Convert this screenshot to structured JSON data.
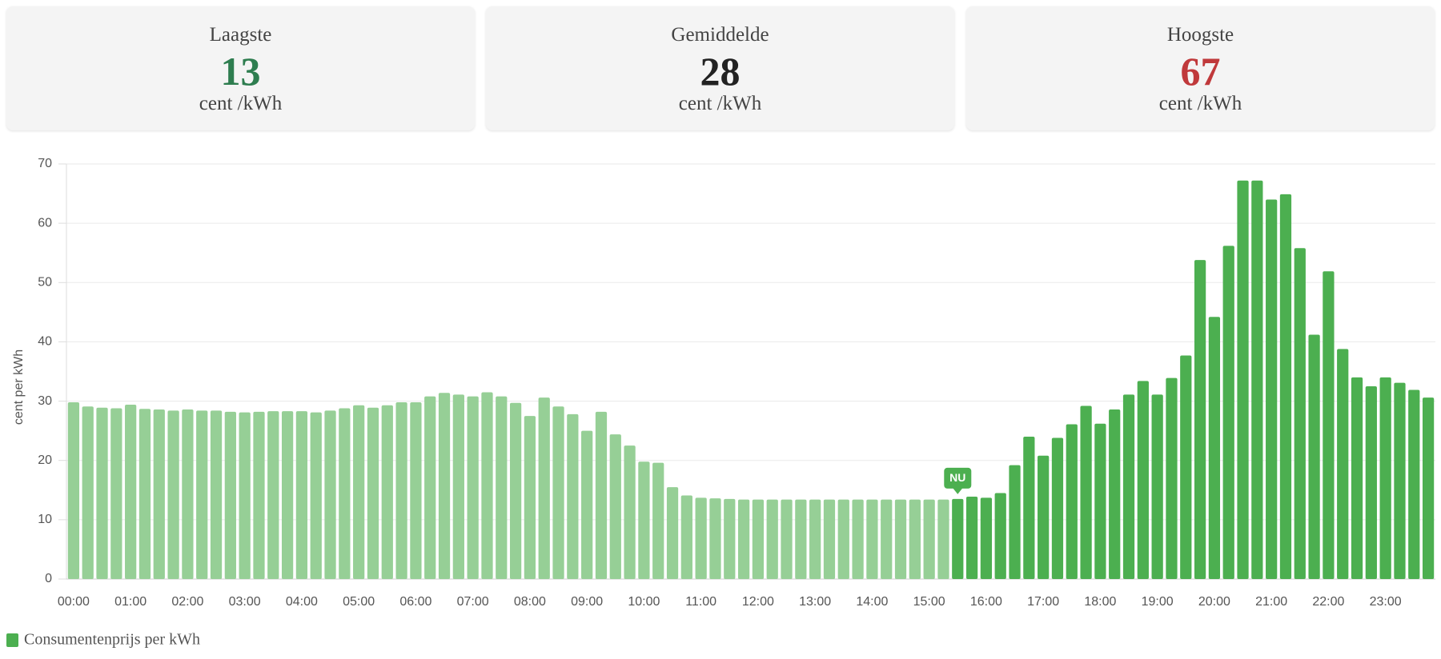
{
  "cards": [
    {
      "label": "Laagste",
      "value": 13,
      "unit": "cent /kWh",
      "color": "#2e7d4f"
    },
    {
      "label": "Gemiddelde",
      "value": 28,
      "unit": "cent /kWh",
      "color": "#222222"
    },
    {
      "label": "Hoogste",
      "value": 67,
      "unit": "cent /kWh",
      "color": "#c0393b"
    }
  ],
  "chart_data": {
    "type": "bar",
    "y_label": "cent per kWh",
    "categories": [
      "00:00",
      null,
      null,
      null,
      "01:00",
      null,
      null,
      null,
      "02:00",
      null,
      null,
      null,
      "03:00",
      null,
      null,
      null,
      "04:00",
      null,
      null,
      null,
      "05:00",
      null,
      null,
      null,
      "06:00",
      null,
      null,
      null,
      "07:00",
      null,
      null,
      null,
      "08:00",
      null,
      null,
      null,
      "09:00",
      null,
      null,
      null,
      "10:00",
      null,
      null,
      null,
      "11:00",
      null,
      null,
      null,
      "12:00",
      null,
      null,
      null,
      "13:00",
      null,
      null,
      null,
      "14:00",
      null,
      null,
      null,
      "15:00",
      null,
      null,
      null,
      "16:00",
      null,
      null,
      null,
      "17:00",
      null,
      null,
      null,
      "18:00",
      null,
      null,
      null,
      "19:00",
      null,
      null,
      null,
      "20:00",
      null,
      null,
      null,
      "21:00",
      null,
      null,
      null,
      "22:00",
      null,
      null,
      null,
      "23:00",
      null,
      null,
      null
    ],
    "series": [
      {
        "name": "Consumentenprijs per kWh",
        "color": "#4caf50",
        "values": [
          29.8,
          29.1,
          28.9,
          28.8,
          29.4,
          28.7,
          28.6,
          28.4,
          28.6,
          28.4,
          28.4,
          28.2,
          28.1,
          28.2,
          28.3,
          28.3,
          28.3,
          28.1,
          28.4,
          28.8,
          29.3,
          28.9,
          29.3,
          29.8,
          29.8,
          30.8,
          31.4,
          31.1,
          30.8,
          31.5,
          30.8,
          29.7,
          27.5,
          30.6,
          29.1,
          27.8,
          25.0,
          28.2,
          24.4,
          22.5,
          19.8,
          19.6,
          15.5,
          14.1,
          13.7,
          13.6,
          13.5,
          13.4,
          13.4,
          13.4,
          13.4,
          13.4,
          13.4,
          13.4,
          13.4,
          13.4,
          13.4,
          13.4,
          13.4,
          13.4,
          13.4,
          13.4,
          13.5,
          13.9,
          13.7,
          14.5,
          19.2,
          24.0,
          20.8,
          23.8,
          26.1,
          29.2,
          26.2,
          28.6,
          31.1,
          33.4,
          31.1,
          33.9,
          37.7,
          53.8,
          44.2,
          56.2,
          67.2,
          67.2,
          64.0,
          64.9,
          55.8,
          41.2,
          51.9,
          38.8,
          34.0,
          32.5,
          34.0,
          33.1,
          31.9,
          30.6
        ]
      }
    ],
    "bar_colors": [
      "#96cf96",
      "#96cf96",
      "#96cf96",
      "#96cf96",
      "#96cf96",
      "#96cf96",
      "#96cf96",
      "#96cf96",
      "#96cf96",
      "#96cf96",
      "#96cf96",
      "#96cf96",
      "#96cf96",
      "#96cf96",
      "#96cf96",
      "#96cf96",
      "#96cf96",
      "#96cf96",
      "#96cf96",
      "#96cf96",
      "#96cf96",
      "#96cf96",
      "#96cf96",
      "#96cf96",
      "#96cf96",
      "#96cf96",
      "#96cf96",
      "#96cf96",
      "#96cf96",
      "#96cf96",
      "#96cf96",
      "#96cf96",
      "#96cf96",
      "#96cf96",
      "#96cf96",
      "#96cf96",
      "#96cf96",
      "#96cf96",
      "#96cf96",
      "#96cf96",
      "#96cf96",
      "#96cf96",
      "#96cf96",
      "#96cf96",
      "#96cf96",
      "#96cf96",
      "#96cf96",
      "#96cf96",
      "#96cf96",
      "#96cf96",
      "#96cf96",
      "#96cf96",
      "#96cf96",
      "#96cf96",
      "#96cf96",
      "#96cf96",
      "#96cf96",
      "#96cf96",
      "#96cf96",
      "#96cf96",
      "#96cf96",
      "#96cf96",
      "#4caf50",
      "#4caf50",
      "#4caf50",
      "#4caf50",
      "#4caf50",
      "#4caf50",
      "#4caf50",
      "#4caf50",
      "#4caf50",
      "#4caf50",
      "#4caf50",
      "#4caf50",
      "#4caf50",
      "#4caf50",
      "#4caf50",
      "#4caf50",
      "#4caf50",
      "#4caf50",
      "#4caf50",
      "#4caf50",
      "#4caf50",
      "#4caf50",
      "#4caf50",
      "#4caf50",
      "#4caf50",
      "#4caf50",
      "#4caf50",
      "#4caf50",
      "#4caf50",
      "#4caf50",
      "#4caf50",
      "#4caf50",
      "#4caf50",
      "#4caf50"
    ],
    "annotation": {
      "text": "NU",
      "index": 62
    },
    "ylim": [
      0,
      70
    ],
    "yticks": [
      0,
      10,
      20,
      30,
      40,
      50,
      60,
      70
    ],
    "grid": true
  }
}
